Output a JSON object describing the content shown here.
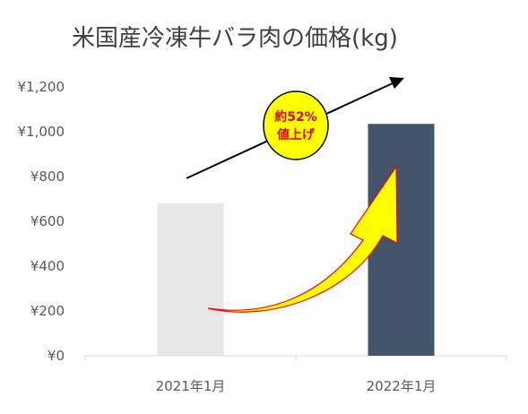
{
  "chart_data": {
    "type": "bar",
    "title": "米国産冷凍牛バラ肉の価格(kg)",
    "categories": [
      "2021年1月",
      "2022年1月"
    ],
    "values": [
      680,
      1035
    ],
    "bar_colors": [
      "#e6e6e6",
      "#44546a"
    ],
    "ylim": [
      0,
      1200
    ],
    "yticks": [
      "¥0",
      "¥200",
      "¥400",
      "¥600",
      "¥800",
      "¥1,000",
      "¥1,200"
    ],
    "grid": false,
    "annotation": {
      "line1": "約52%",
      "line2": "値上げ",
      "badge_color": "#ffff00",
      "arrow_color": "#ffff00",
      "arrow_outline": "#ff0000"
    }
  }
}
